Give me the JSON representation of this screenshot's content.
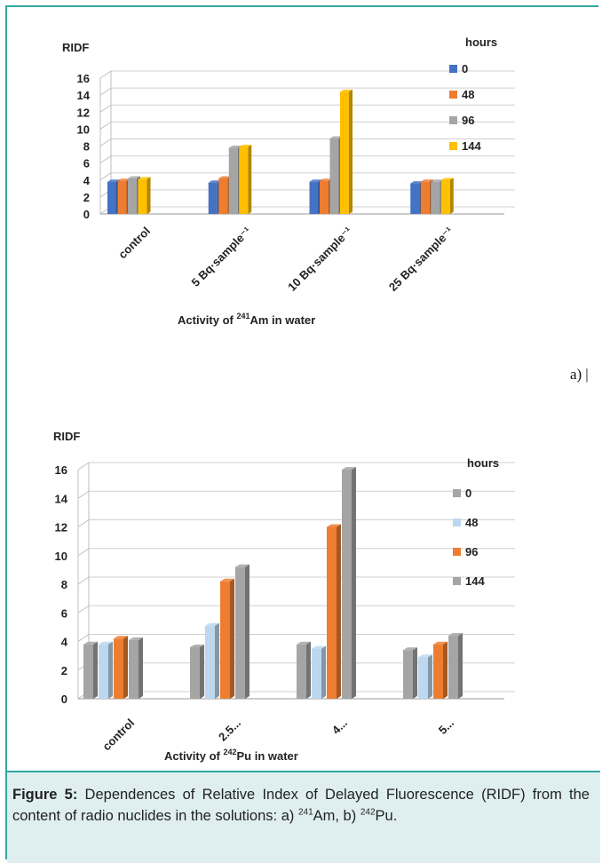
{
  "panel_a_label": "a)",
  "chart_data": [
    {
      "type": "bar",
      "ylabel": "RIDF",
      "xlabel_pre": "Activity of ",
      "xlabel_sup": "241",
      "xlabel_post": "Am in water",
      "categories": [
        "control",
        "5 Bq·sample⁻¹",
        "10 Bq·sample⁻¹",
        "25 Bq·sample⁻¹"
      ],
      "legend_title": "hours",
      "series": [
        {
          "name": "0",
          "color": "#4472c4",
          "values": [
            3.8,
            3.7,
            3.8,
            3.6
          ]
        },
        {
          "name": "48",
          "color": "#ed7d31",
          "values": [
            3.9,
            4.2,
            3.9,
            3.8
          ]
        },
        {
          "name": "96",
          "color": "#a5a5a5",
          "values": [
            4.2,
            7.8,
            8.9,
            3.8
          ]
        },
        {
          "name": "144",
          "color": "#ffc000",
          "values": [
            4.1,
            7.9,
            14.4,
            4.0
          ]
        }
      ],
      "yticks": [
        "16",
        "14",
        "12",
        "10",
        "8",
        "6",
        "4",
        "2",
        "0"
      ],
      "ylim": [
        0,
        16
      ],
      "grid": true,
      "legend_position": "right"
    },
    {
      "type": "bar",
      "ylabel": "RIDF",
      "xlabel_pre": "Activity of ",
      "xlabel_sup": "242",
      "xlabel_post": "Pu in water",
      "categories": [
        "control",
        "2.5...",
        "4...",
        "5..."
      ],
      "legend_title": "hours",
      "series": [
        {
          "name": "0",
          "color": "#a5a5a5",
          "values": [
            3.8,
            3.6,
            3.8,
            3.4
          ]
        },
        {
          "name": "48",
          "color": "#bdd7ee",
          "values": [
            3.8,
            5.1,
            3.5,
            2.9
          ]
        },
        {
          "name": "96",
          "color": "#ed7d31",
          "values": [
            4.2,
            8.2,
            12.0,
            3.8
          ]
        },
        {
          "name": "144",
          "color": "#a5a5a5",
          "values": [
            4.1,
            9.2,
            16.0,
            4.4
          ]
        }
      ],
      "yticks": [
        "16",
        "14",
        "12",
        "10",
        "8",
        "6",
        "4",
        "2",
        "0"
      ],
      "ylim": [
        0,
        16
      ],
      "grid": true,
      "legend_position": "right"
    }
  ],
  "caption": {
    "label": "Figure 5:",
    "text1": " Dependences of Relative Index of Delayed Fluorescence (RIDF) from the content of radio nuclides in the solutions: a) ",
    "sup1": "241",
    "text2": "Am, b) ",
    "sup2": "242",
    "text3": "Pu."
  }
}
